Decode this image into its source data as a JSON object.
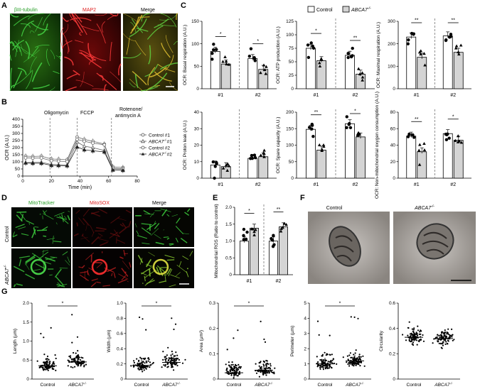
{
  "panels": {
    "A": "A",
    "B": "B",
    "C": "C",
    "D": "D",
    "E": "E",
    "F": "F",
    "G": "G"
  },
  "panel_a": {
    "labels": [
      "βIII-tubulin",
      "MAP2",
      "Merge"
    ],
    "colors": [
      "#3cd23c",
      "#e02020",
      "#d8d040"
    ]
  },
  "panel_b": {
    "title_events": [
      "Oligomycin",
      "FCCP",
      "Rotenone/",
      "antimycin A"
    ],
    "legend": [
      "Control #1",
      "ABCA7-/- #1",
      "Control #2",
      "ABCA7-/- #2"
    ],
    "legend_base": [
      "Control #1",
      "ABCA7",
      "#1",
      "Control #2",
      "ABCA7",
      "#2"
    ]
  },
  "panel_c_legend": {
    "control": "Control",
    "ko": "ABCA7",
    "ko_sup": "-/-"
  },
  "panel_d": {
    "col_labels": [
      "MitoTracker",
      "MitoSOX",
      "Merge"
    ],
    "row_labels": [
      "Control",
      "ABCA7"
    ],
    "ko_sup": "-/-"
  },
  "panel_f": {
    "labels": [
      "Control",
      "ABCA7"
    ],
    "ko_sup": "-/-"
  },
  "chart_data": [
    {
      "panel": "B",
      "type": "line",
      "xlabel": "Time (min)",
      "ylabel": "OCR (A.U.)",
      "xlim": [
        0,
        80
      ],
      "ylim": [
        0,
        400
      ],
      "xticks": [
        "0",
        "20",
        "40",
        "60",
        "80"
      ],
      "yticks": [
        "0",
        "50",
        "100",
        "150",
        "200",
        "250",
        "300",
        "350",
        "400"
      ],
      "x": [
        2,
        7,
        13,
        20,
        25,
        31,
        38,
        43,
        49,
        57,
        63,
        70
      ],
      "series": [
        {
          "name": "Control #1",
          "values": [
            140,
            138,
            140,
            120,
            118,
            115,
            275,
            258,
            245,
            225,
            65,
            60
          ]
        },
        {
          "name": "ABCA7-/- #1",
          "values": [
            95,
            96,
            97,
            82,
            80,
            78,
            240,
            210,
            200,
            180,
            50,
            48
          ]
        },
        {
          "name": "Control #2",
          "values": [
            128,
            126,
            127,
            108,
            105,
            102,
            258,
            245,
            232,
            220,
            55,
            52
          ]
        },
        {
          "name": "ABCA7-/- #2",
          "values": [
            92,
            90,
            90,
            75,
            74,
            72,
            205,
            185,
            178,
            170,
            42,
            40
          ]
        }
      ]
    },
    {
      "panel": "C",
      "type": "bar",
      "ylabel": "OCR: Basal respiration (A.U.)",
      "ylim": [
        0,
        150
      ],
      "yticks": [
        "0",
        "50",
        "100",
        "150"
      ],
      "groups": [
        "#1",
        "#2"
      ],
      "values": [
        [
          83,
          55
        ],
        [
          67,
          43
        ]
      ],
      "sig": [
        "*",
        "*"
      ]
    },
    {
      "panel": "C",
      "type": "bar",
      "ylabel": "OCR: ATP production (A.U.)",
      "ylim": [
        0,
        125
      ],
      "yticks": [
        "0",
        "25",
        "50",
        "75",
        "100",
        "125"
      ],
      "groups": [
        "#1",
        "#2"
      ],
      "values": [
        [
          75,
          52
        ],
        [
          62,
          27
        ]
      ],
      "sig": [
        "*",
        "**"
      ]
    },
    {
      "panel": "C",
      "type": "bar",
      "ylabel": "OCR: Maximal respiration (A.U.)",
      "ylim": [
        0,
        300
      ],
      "yticks": [
        "0",
        "100",
        "200",
        "300"
      ],
      "groups": [
        "#1",
        "#2"
      ],
      "values": [
        [
          230,
          140
        ],
        [
          235,
          162
        ]
      ],
      "sig": [
        "**",
        "**"
      ]
    },
    {
      "panel": "C",
      "type": "bar",
      "ylabel": "OCR: Proton leak (A.U.)",
      "ylim": [
        0,
        40
      ],
      "yticks": [
        "0",
        "10",
        "20",
        "30",
        "40"
      ],
      "groups": [
        "#1",
        "#2"
      ],
      "values": [
        [
          8,
          7
        ],
        [
          12,
          13
        ]
      ],
      "sig": [
        "",
        ""
      ]
    },
    {
      "panel": "C",
      "type": "bar",
      "ylabel": "OCR: Spare capacity (A.U.)",
      "ylim": [
        0,
        200
      ],
      "yticks": [
        "0",
        "50",
        "100",
        "150",
        "200"
      ],
      "groups": [
        "#1",
        "#2"
      ],
      "values": [
        [
          148,
          85
        ],
        [
          165,
          125
        ]
      ],
      "sig": [
        "**",
        "*"
      ]
    },
    {
      "panel": "C",
      "type": "bar",
      "ylabel": "OCR: Non-mitochondrial oxygen consumption (A.U.)",
      "ylim": [
        0,
        80
      ],
      "yticks": [
        "0",
        "20",
        "40",
        "60",
        "80"
      ],
      "groups": [
        "#1",
        "#2"
      ],
      "values": [
        [
          51,
          32
        ],
        [
          54,
          46
        ]
      ],
      "sig": [
        "**",
        "*"
      ]
    },
    {
      "panel": "E",
      "type": "bar",
      "ylabel": "Mitochondrial ROS (Ratio to control)",
      "ylim": [
        0,
        2.0
      ],
      "yticks": [
        "0",
        "0.5",
        "1.0",
        "1.5",
        "2.0"
      ],
      "groups": [
        "#1",
        "#2"
      ],
      "values": [
        [
          1.0,
          1.38
        ],
        [
          1.0,
          1.42
        ]
      ],
      "sig": [
        "*",
        "**"
      ]
    },
    {
      "panel": "G",
      "type": "scatter",
      "ylabel": "Length (µm)",
      "ylim": [
        0,
        2.0
      ],
      "yticks": [
        "0",
        "0.5",
        "1.0",
        "1.5",
        "2.0"
      ],
      "categories": [
        "Control",
        "ABCA7-/-"
      ],
      "medians": [
        0.35,
        0.45
      ],
      "sig": "*"
    },
    {
      "panel": "G",
      "type": "scatter",
      "ylabel": "Width (µm)",
      "ylim": [
        0,
        1.0
      ],
      "yticks": [
        "0",
        "0.2",
        "0.4",
        "0.6",
        "0.8",
        "1.0"
      ],
      "categories": [
        "Control",
        "ABCA7-/-"
      ],
      "medians": [
        0.18,
        0.22
      ],
      "sig": "*"
    },
    {
      "panel": "G",
      "type": "scatter",
      "ylabel": "Area (µm²)",
      "ylim": [
        0,
        0.3
      ],
      "yticks": [
        "0",
        "0.1",
        "0.2",
        "0.3"
      ],
      "categories": [
        "Control",
        "ABCA7-/-"
      ],
      "medians": [
        0.025,
        0.035
      ],
      "sig": "*"
    },
    {
      "panel": "G",
      "type": "scatter",
      "ylabel": "Perimeter (µm)",
      "ylim": [
        0,
        5
      ],
      "yticks": [
        "0",
        "1",
        "2",
        "3",
        "4",
        "5"
      ],
      "categories": [
        "Control",
        "ABCA7-/-"
      ],
      "medians": [
        1.0,
        1.2
      ],
      "sig": "*"
    },
    {
      "panel": "G",
      "type": "scatter",
      "ylabel": "Circularity",
      "ylim": [
        0,
        0.6
      ],
      "yticks": [
        "0",
        "0.2",
        "0.4",
        "0.6"
      ],
      "categories": [
        "Control",
        "ABCA7-/-"
      ],
      "medians": [
        0.33,
        0.32
      ],
      "sig": ""
    }
  ],
  "ko_label": "ABCA7",
  "ko_sup": "-/-",
  "control_label": "Control"
}
